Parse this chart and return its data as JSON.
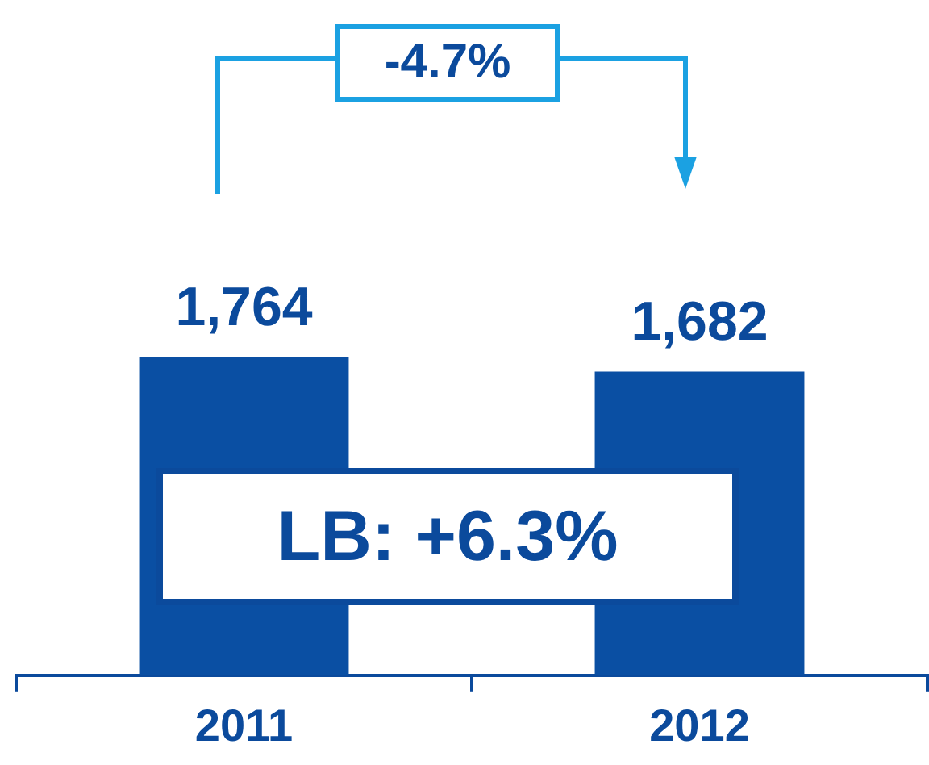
{
  "chart_data": {
    "type": "bar",
    "categories": [
      "2011",
      "2012"
    ],
    "values": [
      1764,
      1682
    ],
    "color": "#0a4fa3",
    "value_labels": [
      "1,764",
      "1,682"
    ],
    "grid": false,
    "legend": false,
    "annotations": [
      "-4.7%",
      "LB: +6.3%"
    ]
  }
}
